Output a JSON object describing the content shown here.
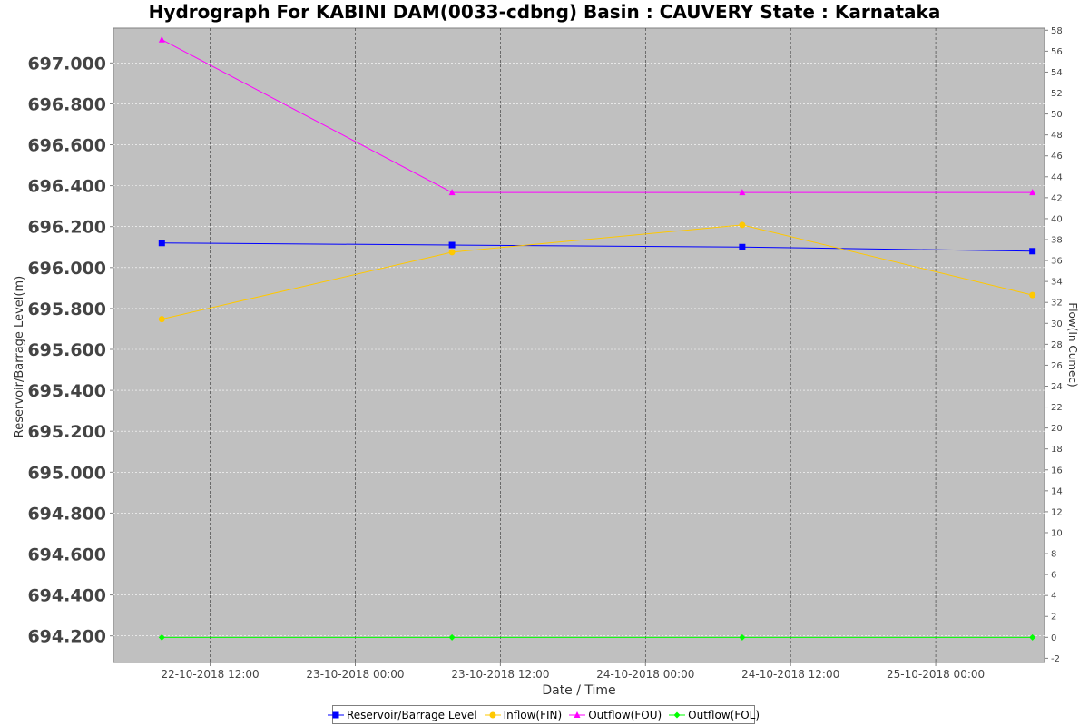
{
  "chart_data": {
    "type": "line",
    "title": "Hydrograph For KABINI DAM(0033-cdbng) Basin : CAUVERY State : Karnataka",
    "xlabel": "Date / Time",
    "ylabel_left": "Reservoir/Barrage Level(m)",
    "ylabel_right": "Flow(In Cumec)",
    "x_ticks": [
      "22-10-2018 12:00",
      "23-10-2018 00:00",
      "23-10-2018 12:00",
      "24-10-2018 00:00",
      "24-10-2018 12:00",
      "25-10-2018 00:00"
    ],
    "x_points": [
      "22-10-2018 08:00",
      "23-10-2018 08:00",
      "24-10-2018 08:00",
      "25-10-2018 08:00"
    ],
    "xlim": [
      "22-10-2018 04:00",
      "25-10-2018 09:00"
    ],
    "ylim_left": [
      694.07,
      697.17
    ],
    "yticks_left": [
      "694.200",
      "694.400",
      "694.600",
      "694.800",
      "695.000",
      "695.200",
      "695.400",
      "695.600",
      "695.800",
      "696.000",
      "696.200",
      "696.400",
      "696.600",
      "696.800",
      "697.000"
    ],
    "ylim_right": [
      -2.4,
      58.2
    ],
    "yticks_right": [
      "-2",
      "0",
      "2",
      "4",
      "6",
      "8",
      "10",
      "12",
      "14",
      "16",
      "18",
      "20",
      "22",
      "24",
      "26",
      "28",
      "30",
      "32",
      "34",
      "36",
      "38",
      "40",
      "42",
      "44",
      "46",
      "48",
      "50",
      "52",
      "54",
      "56",
      "58"
    ],
    "grid": true,
    "legend_position": "bottom",
    "series": [
      {
        "name": "Reservoir/Barrage Level",
        "axis": "left",
        "marker": "square",
        "color": "#0000ff",
        "values": [
          696.12,
          696.11,
          696.1,
          696.08
        ]
      },
      {
        "name": "Inflow(FIN)",
        "axis": "right",
        "marker": "circle",
        "color": "#ffc800",
        "values": [
          30.4,
          36.8,
          39.4,
          32.7
        ]
      },
      {
        "name": "Outflow(FOU)",
        "axis": "right",
        "marker": "triangle",
        "color": "#ff00ff",
        "values": [
          57.1,
          42.5,
          42.5,
          42.5
        ]
      },
      {
        "name": "Outflow(FOL)",
        "axis": "right",
        "marker": "diamond",
        "color": "#00ff00",
        "values": [
          0,
          0,
          0,
          0
        ]
      }
    ]
  }
}
